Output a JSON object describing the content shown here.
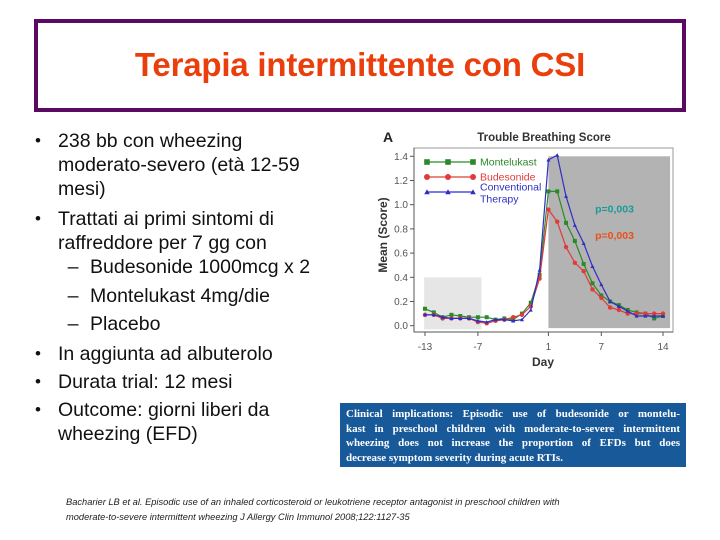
{
  "slide": {
    "title": "Terapia intermittente con CSI",
    "colors": {
      "title_text": "#ea3f0d",
      "title_border": "#5b0a63",
      "clinical_box_bg": "#18599a"
    },
    "bullet_glyph": "•",
    "dash_glyph": "–",
    "bullets": [
      {
        "level": 1,
        "lines": [
          "238 bb con wheezing",
          "moderato-severo (età 12-59",
          "mesi)"
        ]
      },
      {
        "level": 1,
        "lines": [
          "Trattati ai primi sintomi di",
          "raffreddore per 7 gg con"
        ]
      },
      {
        "level": 2,
        "lines": [
          "Budesonide 1000mcg x 2"
        ]
      },
      {
        "level": 2,
        "lines": [
          "Montelukast 4mg/die"
        ]
      },
      {
        "level": 2,
        "lines": [
          "Placebo"
        ]
      },
      {
        "level": 1,
        "lines": [
          "In aggiunta ad albuterolo"
        ]
      },
      {
        "level": 1,
        "lines": [
          "Durata trial: 12 mesi"
        ]
      },
      {
        "level": 1,
        "lines": [
          "Outcome: giorni liberi da",
          "wheezing (EFD)"
        ]
      }
    ],
    "clinical_implications": {
      "lines": [
        "Clinical implications: Episodic use of budesonide or montelu-",
        "kast in preschool children with moderate-to-severe intermittent",
        "wheezing does not increase the proportion of EFDs but does",
        "decrease symptom severity during acute RTIs."
      ]
    },
    "citation": {
      "lines": [
        "Bacharier LB et al. Episodic use of an inhaled corticosteroid or leukotriene receptor antagonist in preschool children with",
        "moderate-to-severe intermittent wheezing J Allergy Clin Immunol 2008;122:1127-35"
      ]
    }
  },
  "chart_data": {
    "type": "line",
    "panel_label": "A",
    "title": "Trouble Breathing Score",
    "xlabel": "Day",
    "ylabel": "Mean (Score)",
    "xlim": [
      -13,
      14
    ],
    "ylim": [
      0,
      1.4
    ],
    "xticks": [
      -13,
      -7,
      1,
      7,
      14
    ],
    "yticks": [
      0.0,
      0.2,
      0.4,
      0.6,
      0.8,
      1.0,
      1.2,
      1.4
    ],
    "grid": false,
    "legend_position": "upper left",
    "x": [
      -13,
      -12,
      -11,
      -10,
      -9,
      -8,
      -7,
      -6,
      -5,
      -4,
      -3,
      -2,
      -1,
      0,
      1,
      2,
      3,
      4,
      5,
      6,
      7,
      8,
      9,
      10,
      11,
      12,
      13,
      14
    ],
    "series": [
      {
        "name": "Montelukast",
        "legend_lines": [
          "Montelukast"
        ],
        "color": "#2a8a2a",
        "marker": "square",
        "values": [
          0.14,
          0.11,
          0.07,
          0.09,
          0.08,
          0.07,
          0.07,
          0.07,
          0.05,
          0.06,
          0.05,
          0.1,
          0.19,
          0.42,
          1.11,
          1.11,
          0.85,
          0.7,
          0.51,
          0.35,
          0.25,
          0.2,
          0.17,
          0.13,
          0.11,
          0.1,
          0.06,
          0.08
        ]
      },
      {
        "name": "Budesonide",
        "legend_lines": [
          "Budesonide"
        ],
        "color": "#e03a3a",
        "marker": "circle",
        "values": [
          0.09,
          0.09,
          0.06,
          0.06,
          0.06,
          0.06,
          0.03,
          0.02,
          0.04,
          0.05,
          0.07,
          0.09,
          0.16,
          0.39,
          0.96,
          0.86,
          0.65,
          0.52,
          0.45,
          0.3,
          0.23,
          0.15,
          0.13,
          0.1,
          0.1,
          0.1,
          0.1,
          0.1
        ]
      },
      {
        "name": "Conventional Therapy",
        "legend_lines": [
          "Conventional",
          "Therapy"
        ],
        "color": "#2e2ec4",
        "marker": "triangle",
        "values": [
          0.09,
          0.09,
          0.07,
          0.06,
          0.06,
          0.06,
          0.04,
          0.03,
          0.05,
          0.05,
          0.04,
          0.05,
          0.13,
          0.46,
          1.37,
          1.41,
          1.07,
          0.83,
          0.68,
          0.49,
          0.34,
          0.2,
          0.16,
          0.12,
          0.08,
          0.08,
          0.08,
          0.08
        ]
      }
    ],
    "shaded_regions": [
      {
        "label": "baseline period",
        "x": [
          -13.1,
          -6.6
        ],
        "y": [
          -0.03,
          0.4
        ],
        "color": "#e6e6e6"
      },
      {
        "label": "treatment period",
        "x": [
          1,
          14.8
        ],
        "y": [
          -0.02,
          1.4
        ],
        "color": "#b3b3b3"
      }
    ],
    "annotations": [
      {
        "text": "p=0,003",
        "x": 6.3,
        "y": 0.97,
        "color": "#1a9a9a"
      },
      {
        "text": "p=0,003",
        "x": 6.3,
        "y": 0.75,
        "color": "#e8501a"
      }
    ]
  }
}
